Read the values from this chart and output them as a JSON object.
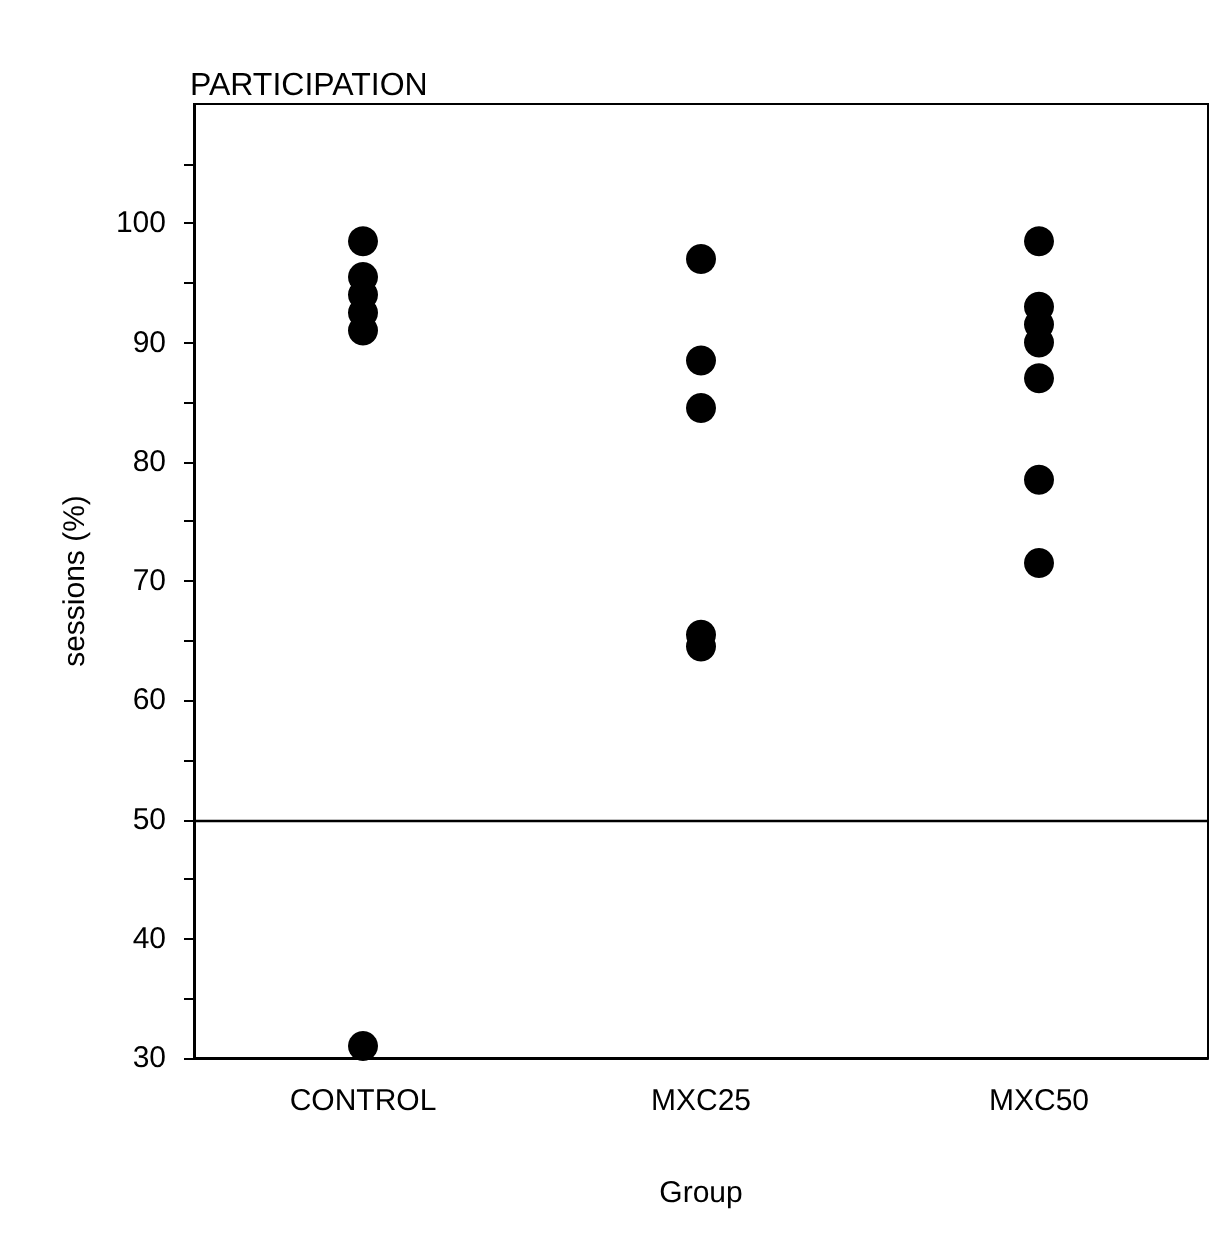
{
  "chart_data": {
    "type": "scatter",
    "title": "PARTICIPATION",
    "xlabel": "Group",
    "ylabel": "sessions (%)",
    "categories": [
      "CONTROL",
      "MXC25",
      "MXC50"
    ],
    "series": [
      {
        "color": "#000000",
        "x": [
          "CONTROL",
          "CONTROL",
          "CONTROL",
          "CONTROL",
          "CONTROL",
          "CONTROL",
          "MXC25",
          "MXC25",
          "MXC25",
          "MXC25",
          "MXC25",
          "MXC50",
          "MXC50",
          "MXC50",
          "MXC50",
          "MXC50",
          "MXC50",
          "MXC50"
        ],
        "values": [
          98.5,
          95.5,
          94,
          92.5,
          91,
          31,
          97,
          88.5,
          84.5,
          65.5,
          64.5,
          98.5,
          93,
          91.5,
          90,
          87,
          78.5,
          71.5
        ]
      }
    ],
    "ylim": [
      30,
      110
    ],
    "yticks": [
      30,
      {
        "value": 35,
        "label": null
      },
      40,
      {
        "value": 45,
        "label": null
      },
      50,
      {
        "value": 55,
        "label": null
      },
      60,
      {
        "value": 65,
        "label": null
      },
      70,
      {
        "value": 75,
        "label": null
      },
      80,
      {
        "value": 85,
        "label": null
      },
      90,
      {
        "value": 95,
        "label": null
      },
      100,
      {
        "value": 105,
        "label": null
      }
    ],
    "ref_lines": [
      {
        "axis": "y",
        "value": 50,
        "color": "#000000"
      }
    ],
    "grid": false,
    "marker": "circle"
  }
}
